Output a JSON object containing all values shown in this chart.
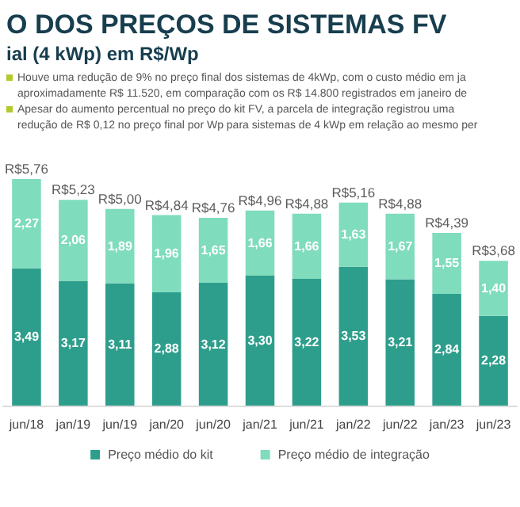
{
  "chart_data": {
    "type": "bar",
    "title": "O DOS PREÇOS DE SISTEMAS FV",
    "subtitle": "ial (4 kWp) em R$/Wp",
    "annotations": [
      "Houve uma redução de 9% no preço final dos sistemas de 4kWp, com o custo médio em ja",
      "aproximadamente R$ 11.520, em comparação com os R$ 14.800 registrados em janeiro de",
      "Apesar do aumento percentual no preço do kit FV, a parcela de integração registrou uma",
      "redução de R$ 0,12 no preço final por Wp para sistemas de 4 kWp em relação ao mesmo per"
    ],
    "categories": [
      "jun/18",
      "jan/19",
      "jun/19",
      "jan/20",
      "jun/20",
      "jan/21",
      "jun/21",
      "jan/22",
      "jun/22",
      "jan/23",
      "jun/23"
    ],
    "stacked": true,
    "series": [
      {
        "name": "Preço médio do kit",
        "color": "#2e9e8c",
        "values": [
          3.49,
          3.17,
          3.11,
          2.88,
          3.12,
          3.3,
          3.22,
          3.53,
          3.21,
          2.84,
          2.28
        ],
        "value_labels": [
          "3,49",
          "3,17",
          "3,11",
          "2,88",
          "3,12",
          "3,30",
          "3,22",
          "3,53",
          "3,21",
          "2,84",
          "2,28"
        ]
      },
      {
        "name": "Preço médio de integração",
        "color": "#7fdcbc",
        "values": [
          2.27,
          2.06,
          1.89,
          1.96,
          1.65,
          1.66,
          1.66,
          1.63,
          1.67,
          1.55,
          1.4
        ],
        "value_labels": [
          "2,27",
          "2,06",
          "1,89",
          "1,96",
          "1,65",
          "1,66",
          "1,66",
          "1,63",
          "1,67",
          "1,55",
          "1,40"
        ]
      }
    ],
    "totals": [
      "R$5,76",
      "R$5,23",
      "R$5,00",
      "R$4,84",
      "R$4,76",
      "R$4,96",
      "R$4,88",
      "R$5,16",
      "R$4,88",
      "R$4,39",
      "R$3,68"
    ],
    "legend": "bottom"
  }
}
